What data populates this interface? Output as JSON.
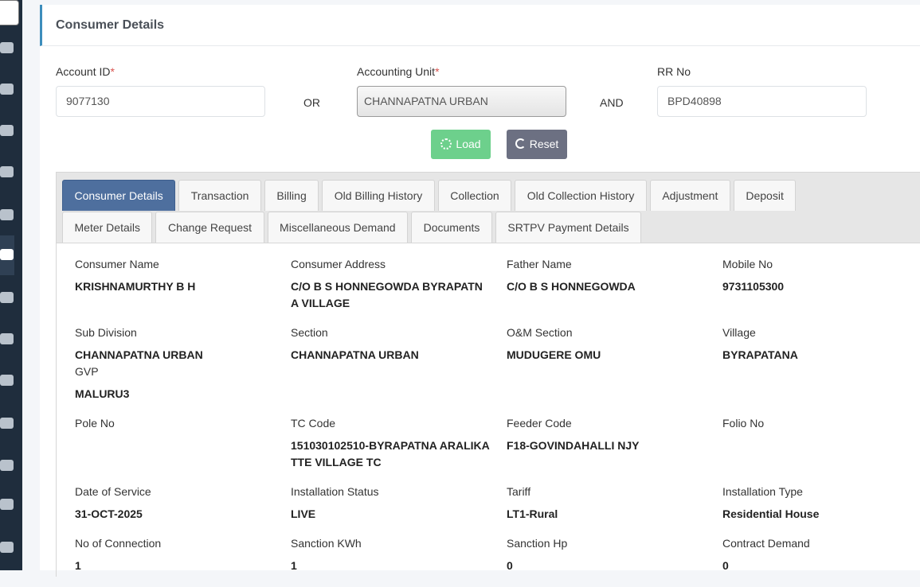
{
  "header": {
    "title": "Consumer Details"
  },
  "form": {
    "account_id": {
      "label": "Account ID",
      "required": "*",
      "value": "9077130"
    },
    "or": "OR",
    "accounting_unit": {
      "label": "Accounting Unit",
      "required": "*",
      "value": "CHANNAPATNA URBAN"
    },
    "and": "AND",
    "rr_no": {
      "label": "RR No",
      "value": "BPD40898"
    },
    "buttons": {
      "load": "Load",
      "reset": "Reset"
    }
  },
  "tabs": [
    "Consumer Details",
    "Transaction",
    "Billing",
    "Old Billing History",
    "Collection",
    "Old Collection History",
    "Adjustment",
    "Deposit",
    "Meter Details",
    "Change Request",
    "Miscellaneous Demand",
    "Documents",
    "SRTPV Payment Details"
  ],
  "active_tab": "Consumer Details",
  "rows": [
    [
      [
        {
          "label": "Consumer Name",
          "value": "KRISHNAMURTHY B H"
        }
      ],
      [
        {
          "label": "Consumer Address",
          "value": "C/O B S HONNEGOWDA BYRAPATNA VILLAGE"
        }
      ],
      [
        {
          "label": "Father Name",
          "value": "C/O B S HONNEGOWDA"
        }
      ],
      [
        {
          "label": "Mobile No",
          "value": "9731105300"
        }
      ]
    ],
    [
      [
        {
          "label": "Sub Division",
          "value": "CHANNAPATNA URBAN"
        },
        {
          "label": "GVP",
          "value": "MALURU3"
        }
      ],
      [
        {
          "label": "Section",
          "value": "CHANNAPATNA URBAN"
        }
      ],
      [
        {
          "label": "O&M Section",
          "value": "MUDUGERE OMU"
        }
      ],
      [
        {
          "label": "Village",
          "value": "BYRAPATANA"
        }
      ]
    ],
    [
      [
        {
          "label": "Pole No"
        }
      ],
      [
        {
          "label": "TC Code",
          "value": "151030102510-BYRAPATNA ARALIKATTE VILLAGE TC"
        }
      ],
      [
        {
          "label": "Feeder Code",
          "value": "F18-GOVINDAHALLI NJY"
        }
      ],
      [
        {
          "label": "Folio No"
        }
      ]
    ],
    [
      [
        {
          "label": "Date of Service",
          "value": "31-OCT-2025"
        }
      ],
      [
        {
          "label": "Installation Status",
          "value": "LIVE"
        }
      ],
      [
        {
          "label": "Tariff",
          "value": "LT1-Rural"
        }
      ],
      [
        {
          "label": "Installation Type",
          "value": "Residential House"
        }
      ]
    ],
    [
      [
        {
          "label": "No of Connection",
          "value": "1"
        }
      ],
      [
        {
          "label": "Sanction KWh",
          "value": "1"
        }
      ],
      [
        {
          "label": "Sanction Hp",
          "value": "0"
        }
      ],
      [
        {
          "label": "Contract Demand",
          "value": "0"
        }
      ]
    ]
  ]
}
